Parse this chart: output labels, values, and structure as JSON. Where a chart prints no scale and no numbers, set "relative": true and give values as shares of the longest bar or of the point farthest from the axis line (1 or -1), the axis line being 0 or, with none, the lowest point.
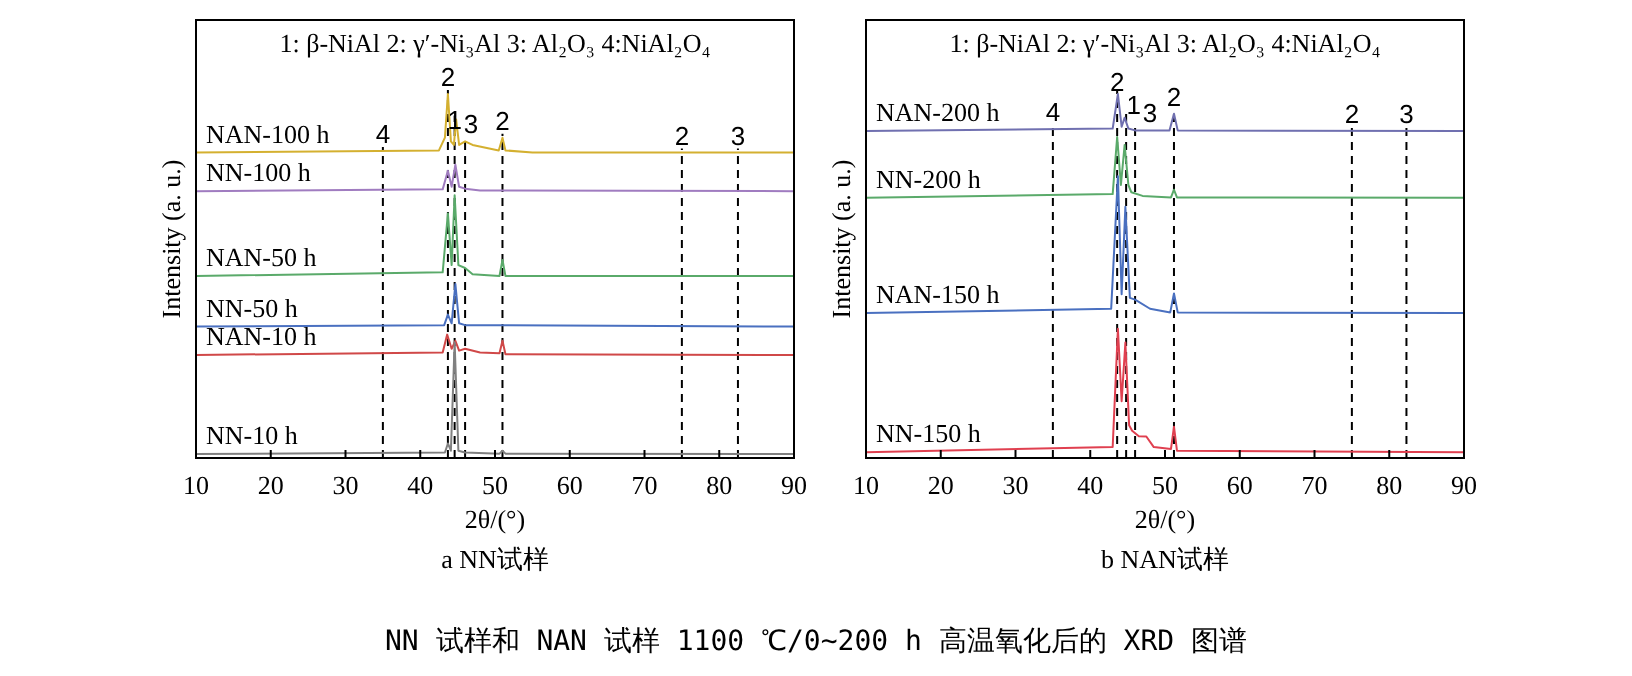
{
  "chart_data": [
    {
      "type": "line",
      "title": "a  NN试样",
      "xlabel": "2θ/(°)",
      "ylabel": "Intensity (a. u.)",
      "relative": true,
      "tick_labels": "x",
      "xlim": [
        10,
        90
      ],
      "xticks": [
        10,
        20,
        30,
        40,
        50,
        60,
        70,
        80,
        90
      ],
      "annotations": [
        "1: β-NiAl   2: γ′-Ni₃Al  3: Al₂O₃  4:NiAl₂O₄",
        "NN 试样和 NAN 试样 1100 ℃/0~200 h 高温氧化后的 XRD 图谱",
        {
          "text": "4",
          "x": 35,
          "y": 0.844
        },
        {
          "text": "2",
          "x": 43.7,
          "y": 1.0
        },
        {
          "text": "1",
          "x": 44.6,
          "y": 0.883
        },
        {
          "text": "3",
          "x": 46,
          "y": 0.87
        },
        {
          "text": "2",
          "x": 51,
          "y": 0.88
        },
        {
          "text": "2",
          "x": 75,
          "y": 0.839
        },
        {
          "text": "3",
          "x": 82.5,
          "y": 0.839
        }
      ],
      "ref_lines": [
        {
          "axis": "x",
          "value": 35,
          "color": "#000000",
          "line_style": "dashed"
        },
        {
          "axis": "x",
          "value": 43.7,
          "color": "#000000",
          "line_style": "dashed"
        },
        {
          "axis": "x",
          "value": 44.6,
          "color": "#000000",
          "line_style": "dashed"
        },
        {
          "axis": "x",
          "value": 46,
          "color": "#000000",
          "line_style": "dashed"
        },
        {
          "axis": "x",
          "value": 51,
          "color": "#000000",
          "line_style": "dashed"
        },
        {
          "axis": "x",
          "value": 75,
          "color": "#000000",
          "line_style": "dashed"
        },
        {
          "axis": "x",
          "value": 82.5,
          "color": "#000000",
          "line_style": "dashed"
        }
      ],
      "series": [
        {
          "name": "NAN-100 h",
          "color": "#d4b030",
          "x": [
            10,
            42.5,
            43.3,
            43.7,
            44.1,
            44.5,
            44.8,
            45.2,
            46,
            47,
            50.5,
            51,
            51.4,
            55,
            90
          ],
          "values": [
            0.839,
            0.845,
            0.88,
            1.0,
            0.87,
            0.86,
            0.93,
            0.86,
            0.87,
            0.86,
            0.845,
            0.88,
            0.845,
            0.839,
            0.839
          ]
        },
        {
          "name": "NN-100 h",
          "color": "#a07cc0",
          "x": [
            10,
            43,
            43.7,
            44.2,
            44.7,
            45.2,
            46,
            48,
            90
          ],
          "values": [
            0.733,
            0.738,
            0.789,
            0.745,
            0.806,
            0.745,
            0.74,
            0.735,
            0.733
          ]
        },
        {
          "name": "NAN-50 h",
          "color": "#5aaa6a",
          "x": [
            10,
            43,
            43.7,
            44.2,
            44.6,
            45.1,
            46,
            47,
            50.6,
            51,
            51.4,
            90
          ],
          "values": [
            0.5,
            0.51,
            0.672,
            0.53,
            0.722,
            0.53,
            0.522,
            0.505,
            0.5,
            0.544,
            0.5,
            0.5
          ]
        },
        {
          "name": "NN-50 h",
          "color": "#4a70c0",
          "x": [
            10,
            43.2,
            43.7,
            44.2,
            44.7,
            45.2,
            46,
            90
          ],
          "values": [
            0.361,
            0.365,
            0.394,
            0.37,
            0.478,
            0.37,
            0.365,
            0.361
          ]
        },
        {
          "name": "NAN-10 h",
          "color": "#d04848",
          "x": [
            10,
            43,
            43.6,
            44.2,
            44.7,
            45.2,
            46,
            48,
            50.6,
            51,
            51.4,
            90
          ],
          "values": [
            0.283,
            0.29,
            0.339,
            0.3,
            0.322,
            0.295,
            0.3,
            0.29,
            0.288,
            0.322,
            0.285,
            0.283
          ]
        },
        {
          "name": "NN-10 h",
          "color": "#808080",
          "x": [
            10,
            43.3,
            43.7,
            44.1,
            44.6,
            45.1,
            46,
            50.6,
            51,
            51.4,
            90
          ],
          "values": [
            0.011,
            0.015,
            0.04,
            0.02,
            0.317,
            0.02,
            0.015,
            0.012,
            0.02,
            0.012,
            0.011
          ]
        }
      ]
    },
    {
      "type": "line",
      "title": "b  NAN试样",
      "xlabel": "2θ/(°)",
      "ylabel": "Intensity (a. u.)",
      "relative": true,
      "tick_labels": "x",
      "xlim": [
        10,
        90
      ],
      "xticks": [
        10,
        20,
        30,
        40,
        50,
        60,
        70,
        80,
        90
      ],
      "annotations": [
        "1: β-NiAl   2: γ′-Ni₃Al  3: Al₂O₃   4:NiAl₂O₄",
        {
          "text": "4",
          "x": 35,
          "y": 0.903
        },
        {
          "text": "2",
          "x": 43.6,
          "y": 0.986
        },
        {
          "text": "1",
          "x": 44.8,
          "y": 0.923
        },
        {
          "text": "3",
          "x": 46,
          "y": 0.9
        },
        {
          "text": "2",
          "x": 51.2,
          "y": 0.946
        },
        {
          "text": "2",
          "x": 75,
          "y": 0.899
        },
        {
          "text": "3",
          "x": 82.3,
          "y": 0.898
        }
      ],
      "ref_lines": [
        {
          "axis": "x",
          "value": 35,
          "color": "#000000",
          "line_style": "dashed"
        },
        {
          "axis": "x",
          "value": 43.6,
          "color": "#000000",
          "line_style": "dashed"
        },
        {
          "axis": "x",
          "value": 44.8,
          "color": "#000000",
          "line_style": "dashed"
        },
        {
          "axis": "x",
          "value": 46,
          "color": "#000000",
          "line_style": "dashed"
        },
        {
          "axis": "x",
          "value": 51.2,
          "color": "#000000",
          "line_style": "dashed"
        },
        {
          "axis": "x",
          "value": 75,
          "color": "#000000",
          "line_style": "dashed"
        },
        {
          "axis": "x",
          "value": 82.3,
          "color": "#000000",
          "line_style": "dashed"
        }
      ],
      "series": [
        {
          "name": "NAN-200 h",
          "color": "#7070b0",
          "x": [
            10,
            43,
            43.7,
            44.2,
            44.6,
            45.1,
            46,
            50.6,
            51.2,
            51.7,
            90
          ],
          "values": [
            0.898,
            0.905,
            1.0,
            0.91,
            0.935,
            0.905,
            0.9,
            0.9,
            0.946,
            0.9,
            0.898
          ]
        },
        {
          "name": "NN-200 h",
          "color": "#5aaa6a",
          "x": [
            10,
            43,
            43.6,
            44.1,
            44.6,
            45.1,
            45.5,
            47,
            50.8,
            51.2,
            51.6,
            90
          ],
          "values": [
            0.715,
            0.725,
            0.882,
            0.75,
            0.86,
            0.75,
            0.73,
            0.72,
            0.716,
            0.737,
            0.716,
            0.715
          ]
        },
        {
          "name": "NAN-150 h",
          "color": "#4a70c0",
          "x": [
            10,
            42.8,
            43.7,
            44.2,
            44.7,
            45.3,
            46,
            48,
            50.7,
            51.2,
            51.7,
            90
          ],
          "values": [
            0.398,
            0.41,
            0.774,
            0.45,
            0.69,
            0.44,
            0.435,
            0.41,
            0.4,
            0.452,
            0.4,
            0.398
          ]
        },
        {
          "name": "NN-150 h",
          "color": "#e04050",
          "x": [
            10,
            43,
            43.7,
            44.2,
            44.7,
            45.2,
            45.6,
            46.5,
            47.5,
            48.5,
            50.8,
            51.2,
            51.6,
            90
          ],
          "values": [
            0.016,
            0.03,
            0.355,
            0.156,
            0.317,
            0.09,
            0.075,
            0.06,
            0.059,
            0.03,
            0.025,
            0.086,
            0.02,
            0.016
          ]
        }
      ]
    }
  ]
}
